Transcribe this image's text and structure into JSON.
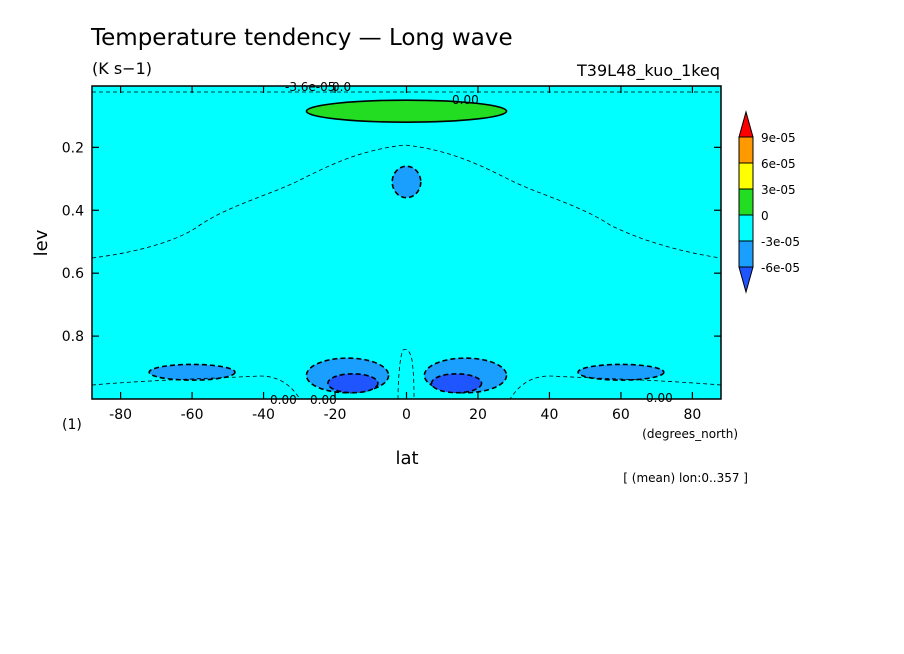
{
  "chart_data": {
    "type": "heatmap",
    "title": "Temperature tendency — Long wave",
    "units": "(K s−1)",
    "experiment": "T39L48_kuo_1keq",
    "xlabel": "lat",
    "x_units": "(degrees_north)",
    "ylabel": "lev",
    "y_units": "(1)",
    "xlim": [
      -88,
      88
    ],
    "ylim": [
      1.0,
      0.005
    ],
    "x_ticks": [
      "-80",
      "-60",
      "-40",
      "-20",
      "0",
      "20",
      "40",
      "60",
      "80"
    ],
    "y_ticks": [
      "0.2",
      "0.4",
      "0.6",
      "0.8"
    ],
    "x_tick_values": [
      -80,
      -60,
      -40,
      -20,
      0,
      20,
      40,
      60,
      80
    ],
    "y_tick_values": [
      0.2,
      0.4,
      0.6,
      0.8
    ],
    "footnote": "[ (mean) lon:0..357 ]",
    "contour_labels": [
      "0.00",
      "0.00",
      "0.00",
      "-3.6e-05",
      "0.00",
      "0.0"
    ],
    "levels": [
      {
        "label": "9e-05",
        "color": "#ff0000"
      },
      {
        "label": "6e-05",
        "color": "#ff9900"
      },
      {
        "label": "3e-05",
        "color": "#ffff00"
      },
      {
        "label": "0",
        "color": "#22dd22"
      },
      {
        "label": "-3e-05",
        "color": "#00ffff"
      },
      {
        "label": "-6e-05",
        "color": "#1a9fff"
      }
    ],
    "extra_fill_colors": {
      "below_min": "#1f55ff"
    },
    "regions": [
      {
        "name": "positive tendency near top",
        "value_range": [
          0,
          3e-05
        ],
        "lat": [
          -28,
          28
        ],
        "lev": [
          0.05,
          0.12
        ],
        "color": "#22dd22"
      },
      {
        "name": "upper cooling spot",
        "value_range": [
          -6e-05,
          -3e-05
        ],
        "lat": [
          -4,
          4
        ],
        "lev": [
          0.26,
          0.36
        ],
        "color": "#1a9fff"
      },
      {
        "name": "low-level cooling south",
        "value_range": [
          -6e-05,
          -3e-05
        ],
        "lat": [
          -28,
          -5
        ],
        "lev": [
          0.87,
          0.98
        ],
        "color": "#1a9fff"
      },
      {
        "name": "low-level strong cooling south",
        "value_range": [
          -9e-05,
          -6e-05
        ],
        "lat": [
          -22,
          -8
        ],
        "lev": [
          0.92,
          0.98
        ],
        "color": "#1f55ff"
      },
      {
        "name": "low-level cooling north",
        "value_range": [
          -6e-05,
          -3e-05
        ],
        "lat": [
          5,
          28
        ],
        "lev": [
          0.87,
          0.98
        ],
        "color": "#1a9fff"
      },
      {
        "name": "low-level strong cooling north",
        "value_range": [
          -9e-05,
          -6e-05
        ],
        "lat": [
          7,
          21
        ],
        "lev": [
          0.92,
          0.98
        ],
        "color": "#1f55ff"
      },
      {
        "name": "cooling band southern midlatitudes",
        "value_range": [
          -6e-05,
          -3e-05
        ],
        "lat": [
          -72,
          -48
        ],
        "lev": [
          0.89,
          0.94
        ],
        "color": "#1a9fff"
      },
      {
        "name": "cooling band northern midlatitudes",
        "value_range": [
          -6e-05,
          -3e-05
        ],
        "lat": [
          48,
          72
        ],
        "lev": [
          0.89,
          0.94
        ],
        "color": "#1a9fff"
      }
    ],
    "background_color": "#00ffff",
    "legend_position": "right",
    "grid": false
  }
}
